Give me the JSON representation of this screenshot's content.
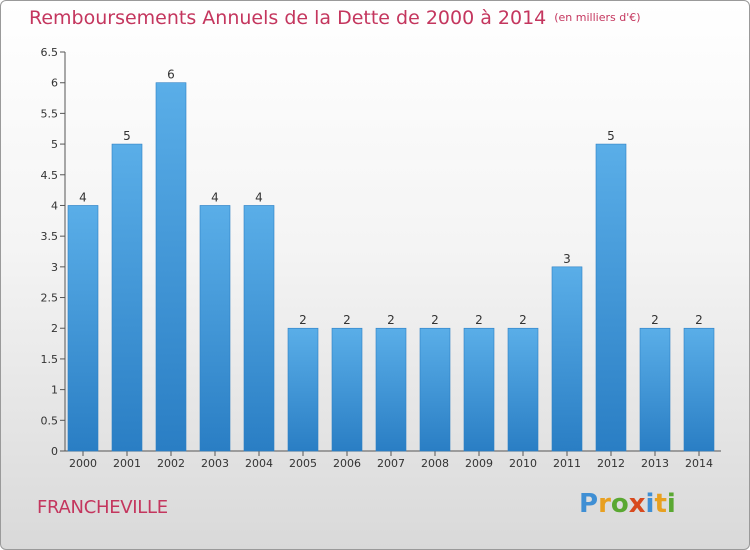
{
  "header": {
    "title": "Remboursements Annuels de la Dette de 2000 à 2014",
    "unit": "(en milliers d'€)"
  },
  "footer": {
    "place": "FRANCHEVILLE",
    "logo_letters": [
      "P",
      "r",
      "o",
      "x",
      "i",
      "t",
      "i"
    ],
    "logo_colors": [
      "#3f8fd4",
      "#e8a020",
      "#5aa832",
      "#d84a1e",
      "#3f8fd4",
      "#e8a020",
      "#5aa832"
    ]
  },
  "colors": {
    "title": "#c4365e",
    "bar_top": "#5aaee8",
    "bar_bottom": "#2a7ec4"
  },
  "chart_data": {
    "type": "bar",
    "title": "Remboursements Annuels de la Dette de 2000 à 2014",
    "xlabel": "",
    "ylabel": "",
    "ylim": [
      0,
      6.5
    ],
    "yticks": [
      "0",
      "0.5",
      "1",
      "1.5",
      "2",
      "2.5",
      "3",
      "3.5",
      "4",
      "4.5",
      "5",
      "5.5",
      "6",
      "6.5"
    ],
    "grid": false,
    "categories": [
      "2000",
      "2001",
      "2002",
      "2003",
      "2004",
      "2005",
      "2006",
      "2007",
      "2008",
      "2009",
      "2010",
      "2011",
      "2012",
      "2013",
      "2014"
    ],
    "values": [
      4,
      5,
      6,
      4,
      4,
      2,
      2,
      2,
      2,
      2,
      2,
      3,
      5,
      2,
      2
    ],
    "data_labels": [
      "4",
      "5",
      "6",
      "4",
      "4",
      "2",
      "2",
      "2",
      "2",
      "2",
      "2",
      "3",
      "5",
      "2",
      "2"
    ]
  }
}
